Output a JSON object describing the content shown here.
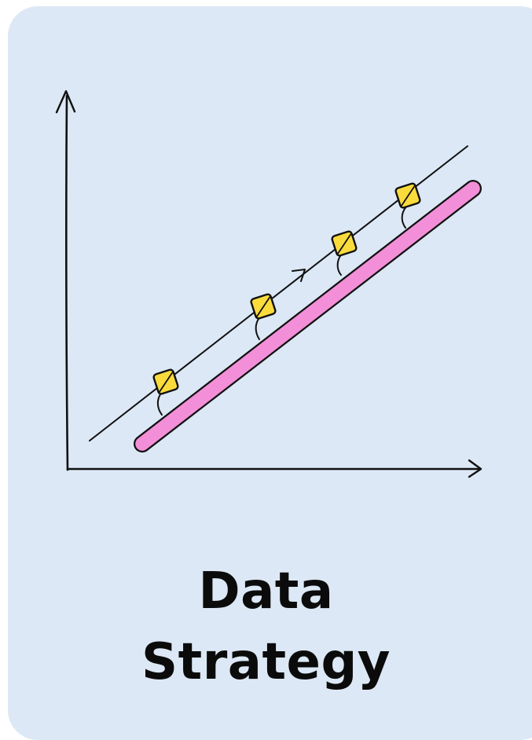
{
  "card": {
    "title_line_1": "Data",
    "title_line_2": "Strategy",
    "background_color": "#dce8f5",
    "text_color": "#0b0b0b"
  },
  "illustration": {
    "icon": "trend-chart-icon",
    "axis_color": "#111111",
    "trend_bar_color": "#f38fd8",
    "marker_color": "#fadb3c",
    "marker_count": 4
  }
}
